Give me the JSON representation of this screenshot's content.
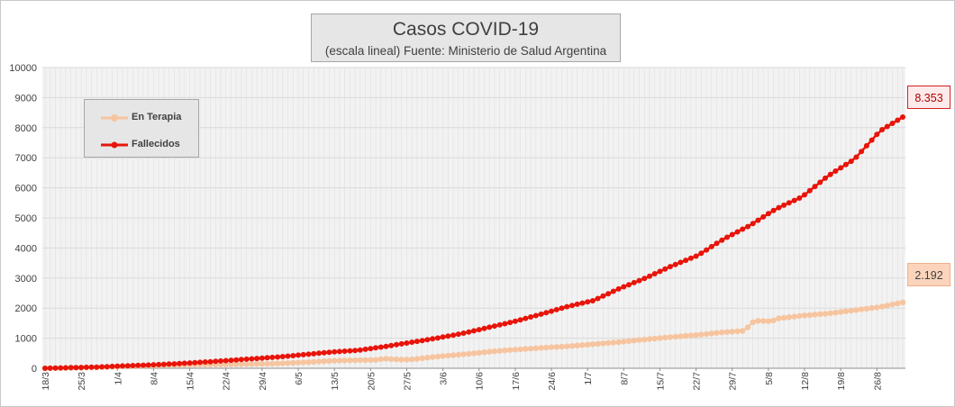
{
  "chart_data": {
    "type": "line",
    "title": "Casos COVID-19",
    "subtitle": "(escala lineal) Fuente: Ministerio de Salud Argentina",
    "xlabel": "",
    "ylabel": "",
    "ylim": [
      0,
      10000
    ],
    "yticks": [
      "0",
      "1000",
      "2000",
      "3000",
      "4000",
      "5000",
      "6000",
      "7000",
      "8000",
      "9000",
      "10000"
    ],
    "xtick_labels": [
      "18/3",
      "25/3",
      "1/4",
      "8/4",
      "15/4",
      "22/4",
      "29/4",
      "6/5",
      "13/5",
      "20/5",
      "27/5",
      "3/6",
      "10/6",
      "17/6",
      "24/6",
      "1/7",
      "8/7",
      "15/7",
      "22/7",
      "29/7",
      "5/8",
      "12/8",
      "19/8",
      "26/8"
    ],
    "n_days": 167,
    "grid": true,
    "legend_position": "top-left",
    "series": [
      {
        "name": "En Terapia",
        "color": "#f6c49e",
        "anchors": [
          [
            0,
            0
          ],
          [
            14,
            30
          ],
          [
            28,
            90
          ],
          [
            35,
            110
          ],
          [
            42,
            125
          ],
          [
            49,
            130
          ],
          [
            56,
            140
          ],
          [
            63,
            160
          ],
          [
            70,
            200
          ],
          [
            77,
            250
          ],
          [
            84,
            270
          ],
          [
            89,
            280
          ],
          [
            91,
            320
          ],
          [
            95,
            290
          ],
          [
            98,
            290
          ],
          [
            105,
            390
          ],
          [
            112,
            460
          ],
          [
            119,
            550
          ],
          [
            126,
            620
          ],
          [
            133,
            680
          ],
          [
            140,
            730
          ],
          [
            147,
            800
          ],
          [
            154,
            870
          ],
          [
            161,
            960
          ],
          [
            168,
            1040
          ],
          [
            175,
            1110
          ],
          [
            182,
            1200
          ],
          [
            188,
            1250
          ],
          [
            189,
            1500
          ],
          [
            191,
            1580
          ],
          [
            195,
            1560
          ],
          [
            196,
            1650
          ],
          [
            203,
            1750
          ],
          [
            210,
            1820
          ],
          [
            217,
            1930
          ],
          [
            224,
            2040
          ],
          [
            230,
            2192
          ]
        ],
        "final_label": "2.192"
      },
      {
        "name": "Fallecidos",
        "color": "#e8140a",
        "anchors": [
          [
            0,
            0
          ],
          [
            7,
            20
          ],
          [
            14,
            40
          ],
          [
            21,
            80
          ],
          [
            28,
            110
          ],
          [
            35,
            150
          ],
          [
            42,
            200
          ],
          [
            49,
            260
          ],
          [
            56,
            320
          ],
          [
            63,
            380
          ],
          [
            70,
            460
          ],
          [
            77,
            540
          ],
          [
            84,
            600
          ],
          [
            91,
            720
          ],
          [
            98,
            860
          ],
          [
            105,
            1000
          ],
          [
            112,
            1160
          ],
          [
            119,
            1360
          ],
          [
            126,
            1560
          ],
          [
            133,
            1800
          ],
          [
            140,
            2050
          ],
          [
            147,
            2250
          ],
          [
            154,
            2650
          ],
          [
            161,
            3000
          ],
          [
            168,
            3400
          ],
          [
            175,
            3750
          ],
          [
            182,
            4300
          ],
          [
            189,
            4750
          ],
          [
            196,
            5300
          ],
          [
            203,
            5700
          ],
          [
            210,
            6400
          ],
          [
            217,
            6950
          ],
          [
            224,
            7900
          ],
          [
            230,
            8353
          ]
        ],
        "final_label": "8.353"
      }
    ]
  },
  "legend": {
    "items": [
      "En Terapia",
      "Fallecidos"
    ]
  },
  "callouts": {
    "fallecidos": "8.353",
    "terapia": "2.192"
  }
}
